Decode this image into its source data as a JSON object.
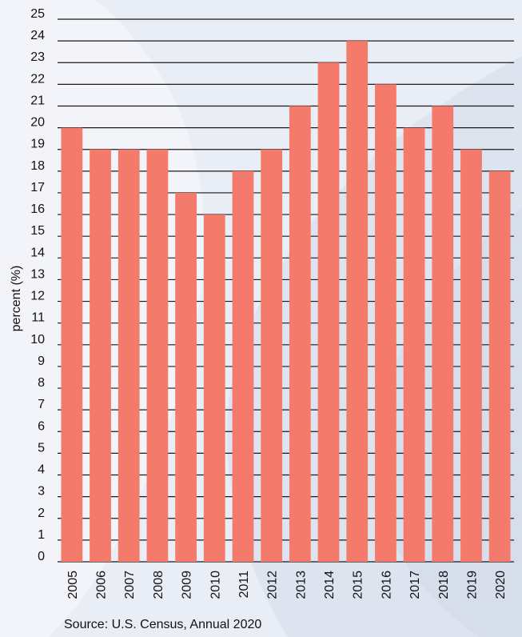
{
  "chart_data": {
    "type": "bar",
    "categories": [
      "2005",
      "2006",
      "2007",
      "2008",
      "2009",
      "2010",
      "2011",
      "2012",
      "2013",
      "2014",
      "2015",
      "2016",
      "2017",
      "2018",
      "2019",
      "2020"
    ],
    "values": [
      20,
      19,
      19,
      19,
      17,
      16,
      18,
      19,
      21,
      23,
      24,
      22,
      20,
      21,
      19,
      18
    ],
    "ylabel": "percent (%)",
    "xlabel": "",
    "ylim": [
      0,
      25
    ],
    "yticks": [
      0,
      1,
      2,
      3,
      4,
      5,
      6,
      7,
      8,
      9,
      10,
      11,
      12,
      13,
      14,
      15,
      16,
      17,
      18,
      19,
      20,
      21,
      22,
      23,
      24,
      25
    ],
    "grid": true,
    "bar_color": "#f47b6b"
  },
  "source": "Source: U.S. Census, Annual 2020"
}
